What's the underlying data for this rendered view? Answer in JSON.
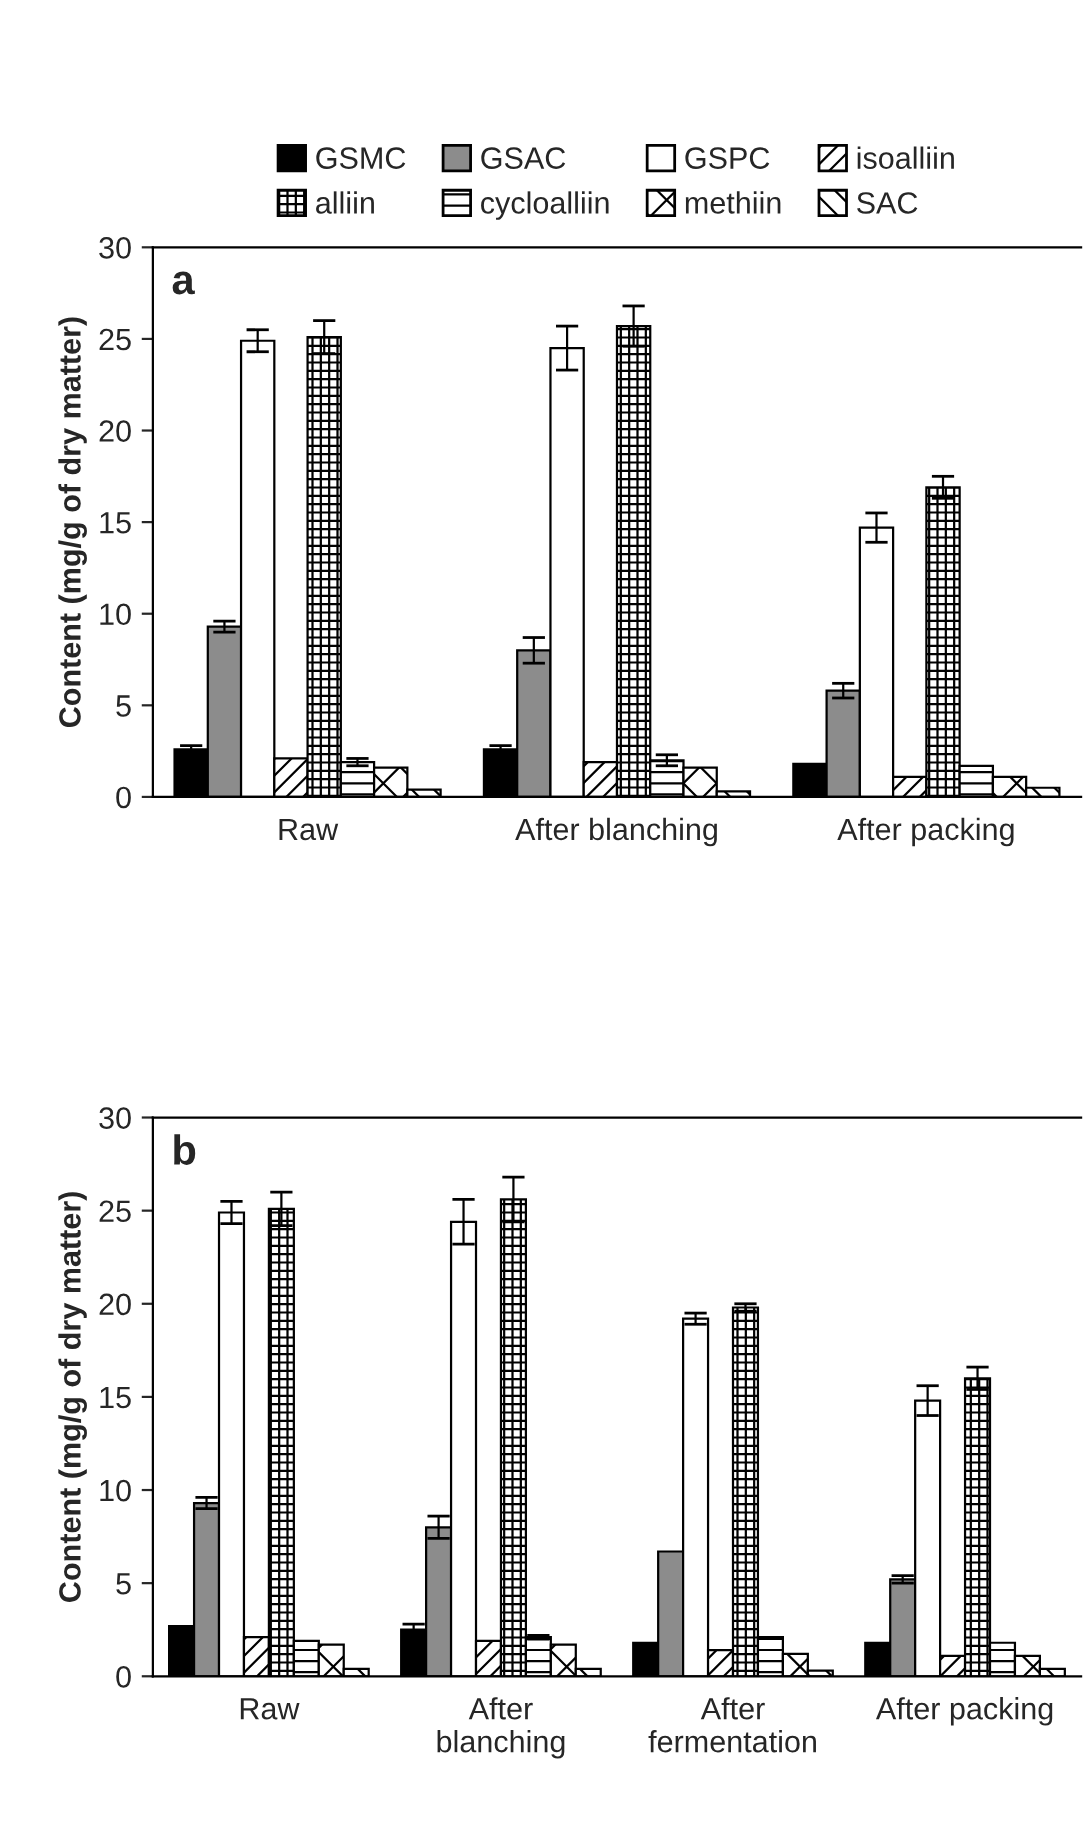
{
  "chart_data": [
    {
      "type": "bar",
      "annotations": [
        "a"
      ],
      "ylabel": "Content (mg/g of dry matter)",
      "categories": [
        "Raw",
        "After blanching",
        "After packing"
      ],
      "ylim": [
        0,
        30
      ],
      "yticks": [
        0,
        5,
        10,
        15,
        20,
        25,
        30
      ],
      "legend": "top",
      "grid": false,
      "series": [
        {
          "name": "GSMC",
          "color": "#000000",
          "values": [
            2.6,
            2.6,
            1.8
          ],
          "errors": [
            0.2,
            0.2,
            null
          ]
        },
        {
          "name": "GSAC",
          "color": "#8c8c8c",
          "values": [
            9.3,
            8.0,
            5.8
          ],
          "errors": [
            0.3,
            0.7,
            0.4
          ]
        },
        {
          "name": "GSPC",
          "color": "#ffffff",
          "values": [
            24.9,
            24.5,
            14.7
          ],
          "errors": [
            0.6,
            1.2,
            0.8
          ]
        },
        {
          "name": "isoalliin",
          "color": "#000000",
          "values": [
            2.1,
            1.9,
            1.1
          ]
        },
        {
          "name": "alliin",
          "color": "#000000",
          "values": [
            25.1,
            25.7,
            16.9
          ],
          "errors": [
            0.9,
            1.1,
            0.6
          ]
        },
        {
          "name": "cycloalliin",
          "color": "#000000",
          "values": [
            1.9,
            2.0,
            1.7
          ],
          "errors": [
            0.2,
            0.3,
            null
          ]
        },
        {
          "name": "methiin",
          "color": "#000000",
          "values": [
            1.6,
            1.6,
            1.1
          ]
        },
        {
          "name": "SAC",
          "color": "#000000",
          "values": [
            0.4,
            0.3,
            0.5
          ]
        }
      ]
    },
    {
      "type": "bar",
      "annotations": [
        "b"
      ],
      "ylabel": "Content (mg/g of dry matter)",
      "categories": [
        "Raw",
        "After\nblanching",
        "After\nfermentation",
        "After packing"
      ],
      "ylim": [
        0,
        30
      ],
      "yticks": [
        0,
        5,
        10,
        15,
        20,
        25,
        30
      ],
      "grid": false,
      "series": [
        {
          "color": "#000000",
          "values": [
            2.7,
            2.5,
            1.8,
            1.8
          ],
          "errors": [
            null,
            0.3,
            null,
            null
          ]
        },
        {
          "color": "#8c8c8c",
          "values": [
            9.3,
            8.0,
            6.7,
            5.2
          ],
          "errors": [
            0.3,
            0.6,
            null,
            0.2
          ]
        },
        {
          "color": "#ffffff",
          "values": [
            24.9,
            24.4,
            19.2,
            14.8
          ],
          "errors": [
            0.6,
            1.2,
            0.3,
            0.8
          ]
        },
        {
          "color": "#000000",
          "values": [
            2.1,
            1.9,
            1.4,
            1.1
          ]
        },
        {
          "color": "#000000",
          "values": [
            25.1,
            25.6,
            19.8,
            16.0
          ],
          "errors": [
            0.9,
            1.2,
            0.2,
            0.6
          ]
        },
        {
          "color": "#000000",
          "values": [
            1.9,
            2.1,
            2.1,
            1.8
          ],
          "errors": [
            null,
            0.1,
            null,
            null
          ]
        },
        {
          "color": "#000000",
          "values": [
            1.7,
            1.7,
            1.2,
            1.1
          ]
        },
        {
          "color": "#000000",
          "values": [
            0.4,
            0.4,
            0.3,
            0.4
          ]
        }
      ]
    }
  ]
}
